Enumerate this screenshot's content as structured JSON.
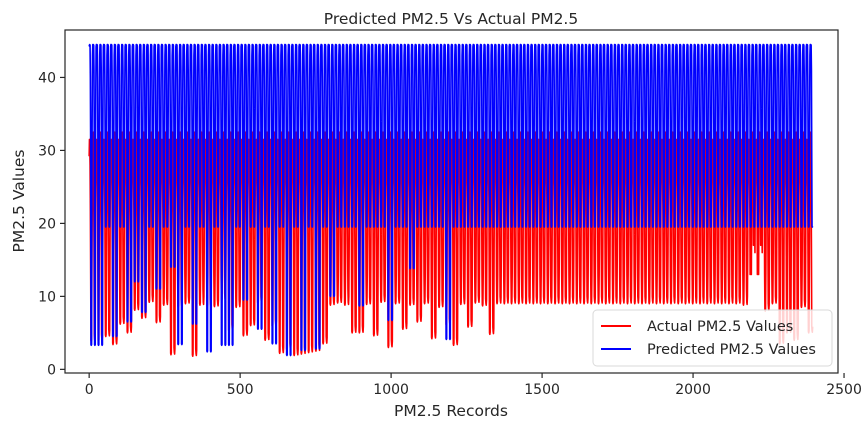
{
  "chart_data": {
    "type": "line",
    "title": "Predicted PM2.5  Vs Actual PM2.5",
    "xlabel": "PM2.5 Records",
    "ylabel": "PM2.5 Values",
    "xlim": [
      -80,
      2480
    ],
    "ylim": [
      -0.5,
      46.5
    ],
    "xticks": [
      0,
      500,
      1000,
      1500,
      2000,
      2500
    ],
    "yticks": [
      0,
      10,
      20,
      30,
      40
    ],
    "grid": false,
    "legend_position": "bottom-right",
    "series": [
      {
        "name": "Actual PM2.5 Values",
        "color": "#ff0000",
        "cycle_records": 24,
        "x_range": [
          0,
          2396
        ],
        "values": [
          29.2,
          31.5,
          30.5,
          28,
          22,
          13,
          9,
          8.8,
          9.1,
          13,
          21,
          28,
          31.5,
          32.5,
          31,
          25,
          17,
          11,
          9.2,
          8.9,
          10,
          16,
          25,
          30.5
        ],
        "trough_overrides": [
          {
            "x_start": 0,
            "x_end": 360,
            "trough_values": [
              4.2,
              3.8,
              4.5,
              3.4,
              6.2,
              5,
              8.1,
              7,
              9.2,
              6.4,
              8.8,
              2,
              8.5,
              9,
              1.8,
              2.4
            ]
          },
          {
            "x_start": 380,
            "x_end": 840,
            "trough_values": [
              9,
              8.6,
              9.4,
              5.2,
              8.5,
              4.6,
              6,
              9,
              4,
              5.8,
              2.2,
              2.6,
              1.9,
              2.1,
              2.3,
              2.5,
              3.5,
              8.8,
              9.1,
              8.8
            ]
          },
          {
            "x_start": 860,
            "x_end": 1330,
            "trough_values": [
              9,
              5,
              8.9,
              4.6,
              9.2,
              3,
              9,
              5.5,
              8.8,
              6.5,
              9,
              4.2,
              8.5,
              6,
              3.3,
              8.9,
              5.8,
              9.1,
              8.7,
              4.8
            ]
          },
          {
            "x_start": 1340,
            "x_end": 2160,
            "trough_value": 9
          },
          {
            "x_start": 2170,
            "x_end": 2396,
            "trough_values": [
              18.5,
              19,
              8,
              9,
              3.5,
              5,
              4,
              8.5,
              5,
              4.5
            ]
          }
        ]
      },
      {
        "name": "Predicted PM2.5 Values",
        "color": "#0000ff",
        "cycle_records": 24,
        "x_range": [
          0,
          2396
        ],
        "values": [
          44.5,
          44.3,
          44.5,
          44.4,
          40,
          30,
          19.5,
          19.4,
          19.5,
          25,
          35,
          43,
          44.5,
          44.3,
          44.5,
          44.4,
          41,
          30,
          19.5,
          19.4,
          19.5,
          28,
          38,
          44.2
        ],
        "trough_overrides": [
          {
            "x_start": 0,
            "x_end": 420,
            "trough_values": [
              19.5,
              3.3,
              19.5,
              4.5,
              19.5,
              6.5,
              12,
              7.8,
              19.5,
              11,
              19.5,
              14,
              3.4,
              19.5,
              6.2,
              19.5,
              2.4,
              19.5
            ]
          },
          {
            "x_start": 420,
            "x_end": 1330,
            "trough_values": [
              19.5,
              3.3,
              19.5,
              9.5,
              19.5,
              5.5,
              19.5,
              3.5,
              19.5,
              1.9,
              19.5,
              2.6,
              19.5,
              2.8,
              19.5,
              10,
              19.5,
              19.5,
              19.5,
              8.7,
              19.5,
              19.5,
              19.5,
              6.7,
              19.5,
              19.5,
              13.8,
              19.5,
              19.5,
              19.5,
              19.5,
              4.1,
              19.5,
              19.5,
              19.5,
              19.5,
              19.5,
              19.5
            ]
          },
          {
            "x_start": 1340,
            "x_end": 2396,
            "trough_value": 19.5
          }
        ]
      }
    ]
  }
}
